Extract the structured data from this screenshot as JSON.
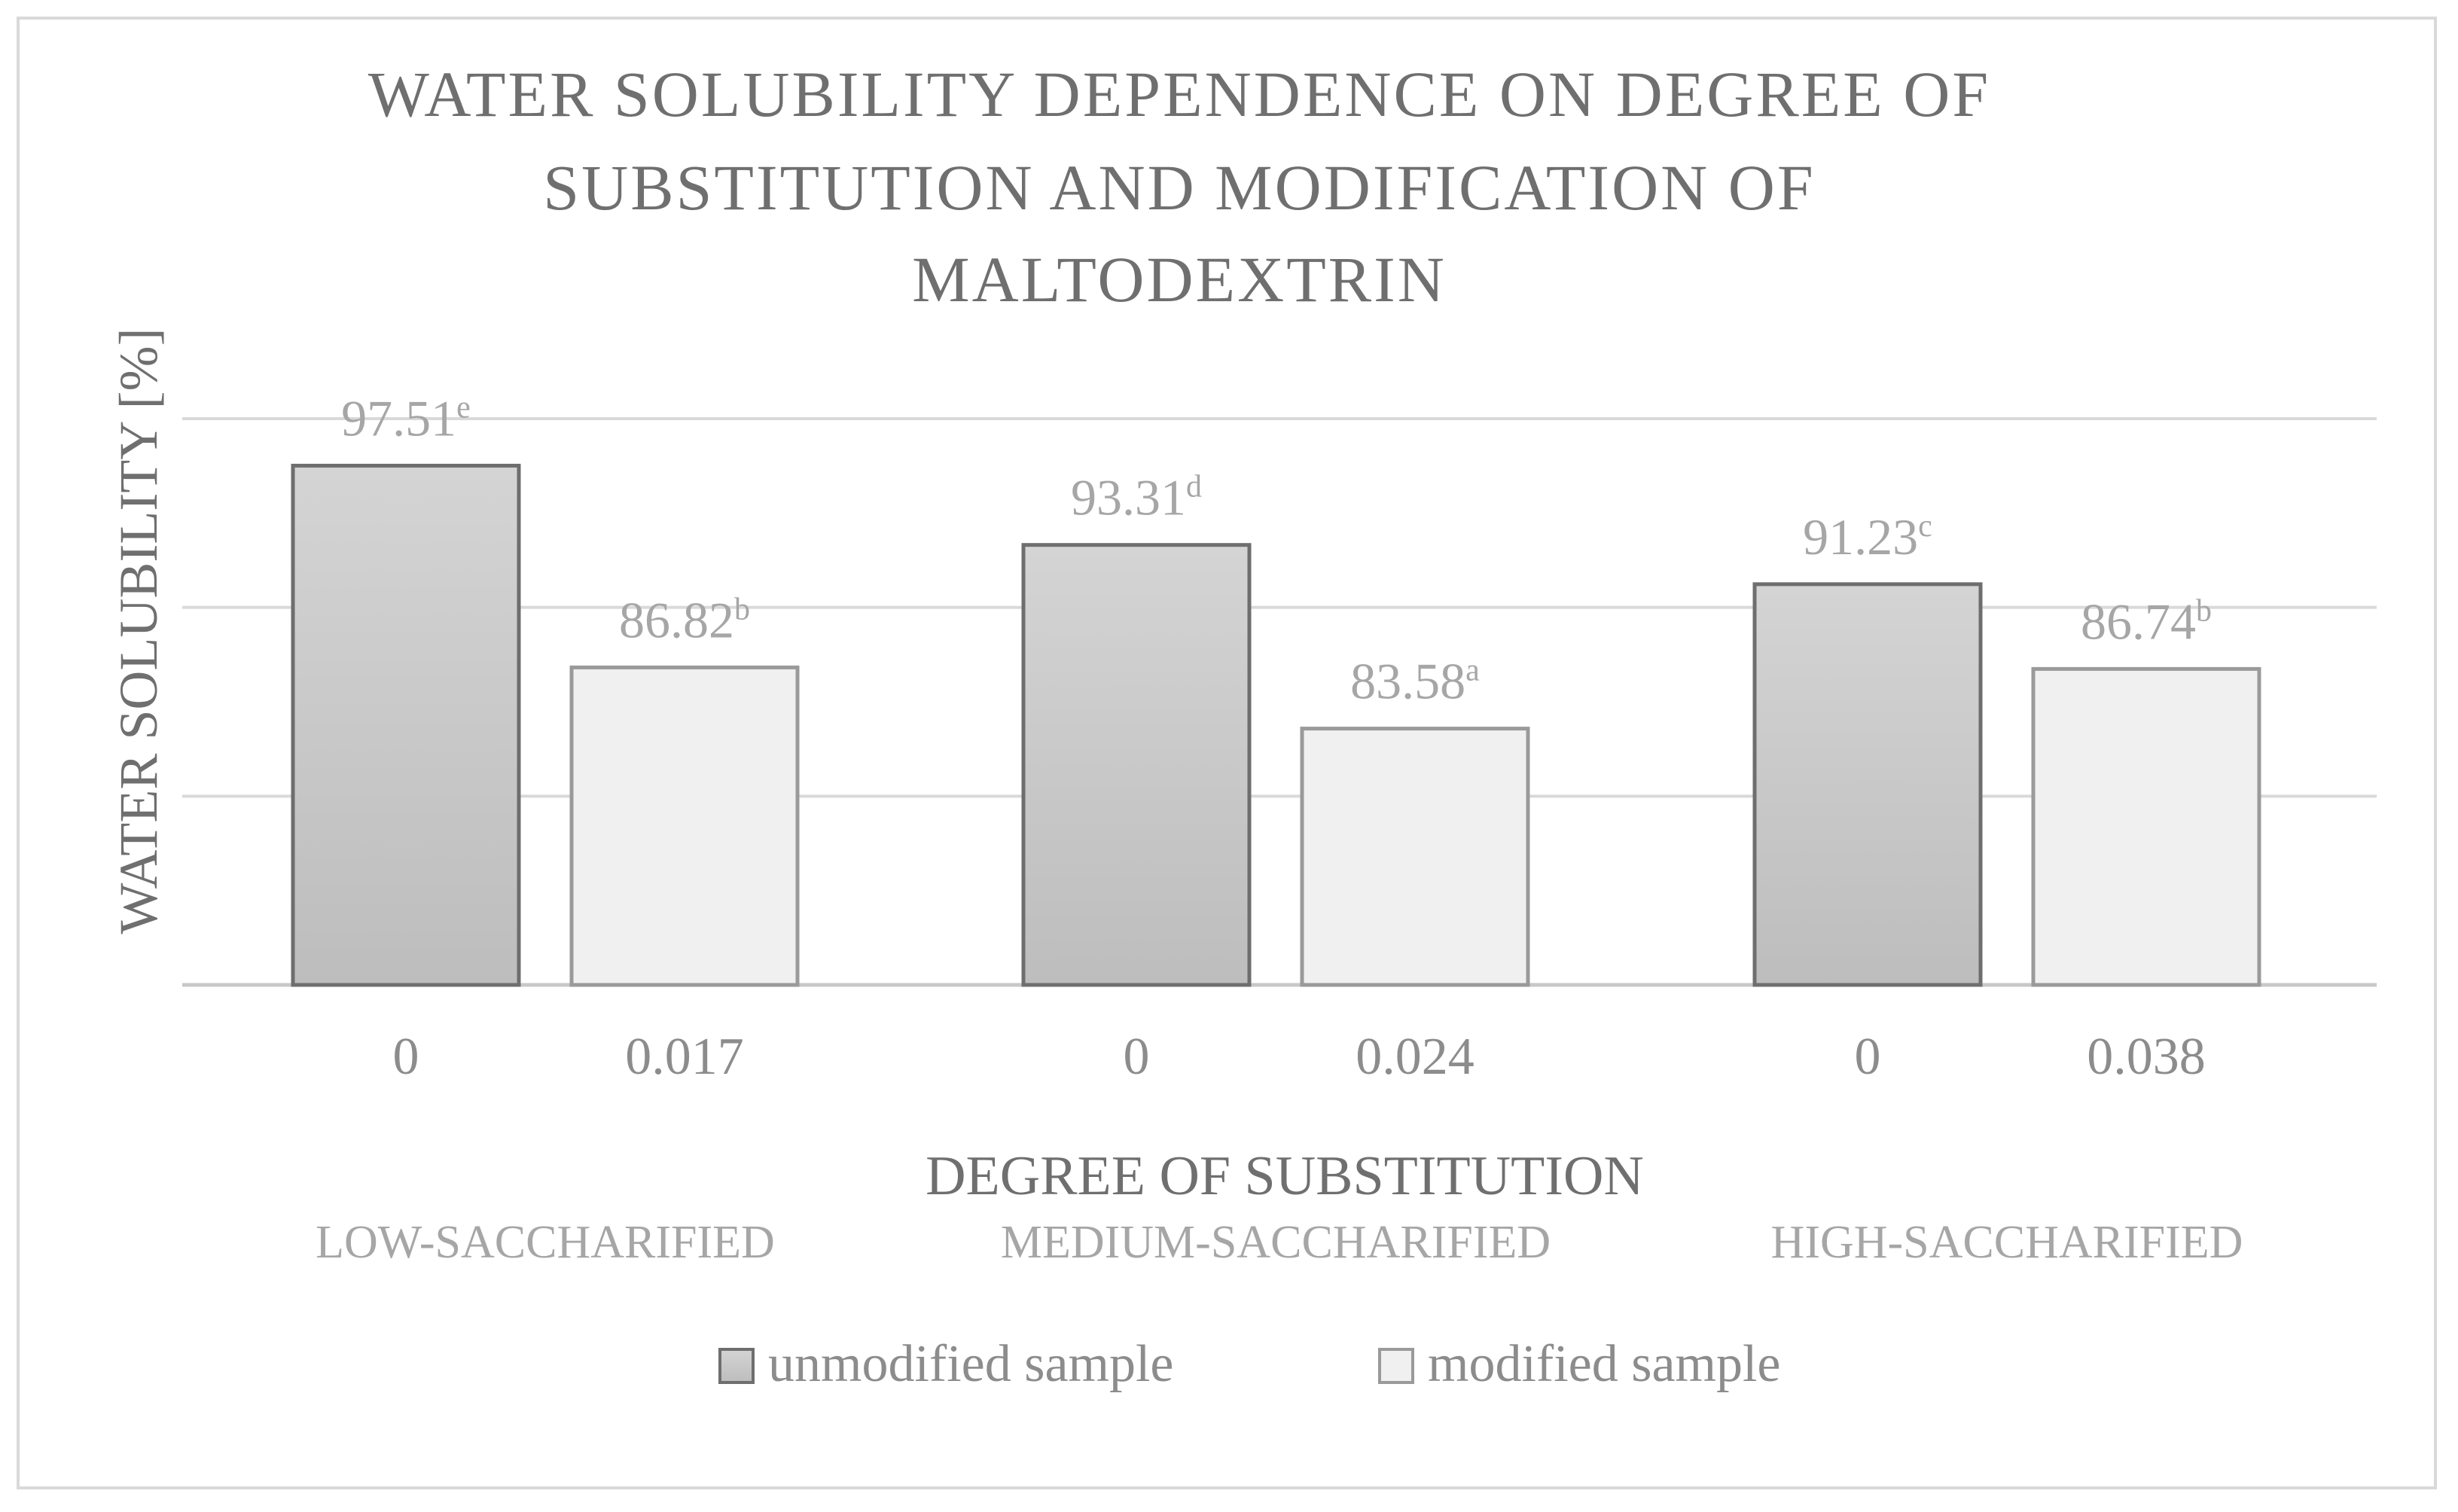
{
  "chart_data": {
    "type": "bar",
    "title": "WATER SOLUBILITY DEPENDENCE ON DEGREE OF SUBSTITUTION AND MODIFICATION OF MALTODEXTRIN",
    "title_lines": [
      "WATER SOLUBILITY DEPENDENCE ON DEGREE OF",
      "SUBSTITUTION AND MODIFICATION OF",
      "MALTODEXTRIN"
    ],
    "xlabel": "DEGREE OF SUBSTITUTION",
    "ylabel": "WATER SOLUBILITY [%]",
    "ylim": [
      70,
      100
    ],
    "grid": true,
    "legend_position": "bottom",
    "categories": [
      "LOW-SACCHARIFIED",
      "MEDIUM-SACCHARIFIED",
      "HIGH-SACCHARIFIED"
    ],
    "series": [
      {
        "name": "unmodified sample",
        "color": "#c6c6c6",
        "x_labels": [
          "0",
          "0",
          "0"
        ],
        "values": [
          97.51,
          93.31,
          91.23
        ],
        "letters": [
          "e",
          "d",
          "c"
        ]
      },
      {
        "name": "modified sample",
        "color": "#f0f0f0",
        "x_labels": [
          "0.017",
          "0.024",
          "0.038"
        ],
        "values": [
          86.82,
          83.58,
          86.74
        ],
        "letters": [
          "b",
          "a",
          "b"
        ]
      }
    ]
  }
}
